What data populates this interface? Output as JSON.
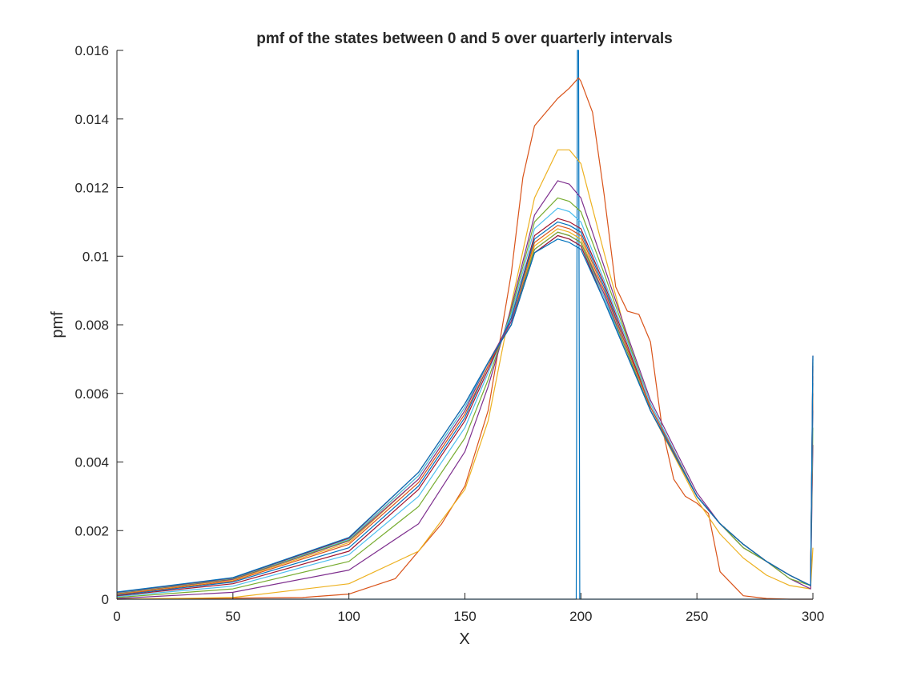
{
  "chart_data": {
    "type": "line",
    "title": "pmf of the states between 0 and 5 over quarterly intervals",
    "xlabel": "X",
    "ylabel": "pmf",
    "xlim": [
      0,
      300
    ],
    "ylim": [
      0,
      0.016
    ],
    "grid": false,
    "legend": "none",
    "x_ticks": [
      "0",
      "50",
      "100",
      "150",
      "200",
      "250",
      "300"
    ],
    "x_tick_values": [
      0,
      50,
      100,
      150,
      200,
      250,
      300
    ],
    "y_ticks": [
      "0",
      "0.002",
      "0.004",
      "0.006",
      "0.008",
      "0.01",
      "0.012",
      "0.014",
      "0.016"
    ],
    "y_tick_values": [
      0,
      0.002,
      0.004,
      0.006,
      0.008,
      0.01,
      0.012,
      0.014,
      0.016
    ],
    "series": [
      {
        "color": "#0072BD",
        "x": [
          0,
          198,
          198.5,
          199,
          199.5,
          200,
          300
        ],
        "y": [
          0,
          0,
          0.016,
          0.016,
          0,
          0,
          0
        ]
      },
      {
        "color": "#D95319",
        "x": [
          0,
          80,
          100,
          120,
          140,
          150,
          160,
          170,
          175,
          180,
          190,
          195,
          199,
          200,
          205,
          210,
          215,
          220,
          225,
          230,
          235,
          240,
          245,
          250,
          255,
          260,
          270,
          280,
          290,
          300
        ],
        "y": [
          0,
          5e-05,
          0.00015,
          0.0006,
          0.0022,
          0.0033,
          0.0055,
          0.0095,
          0.0123,
          0.0138,
          0.0146,
          0.0149,
          0.0152,
          0.0151,
          0.0142,
          0.0118,
          0.0091,
          0.0084,
          0.0083,
          0.0075,
          0.005,
          0.0035,
          0.003,
          0.0028,
          0.0025,
          0.0008,
          0.0001,
          2e-05,
          0,
          0
        ]
      },
      {
        "color": "#EDB120",
        "x": [
          0,
          50,
          100,
          130,
          150,
          160,
          170,
          180,
          190,
          195,
          200,
          210,
          220,
          230,
          250,
          260,
          270,
          280,
          290,
          299,
          300
        ],
        "y": [
          0,
          5e-05,
          0.00045,
          0.0014,
          0.0032,
          0.0052,
          0.0086,
          0.0117,
          0.0131,
          0.0131,
          0.0127,
          0.0101,
          0.0076,
          0.0055,
          0.0029,
          0.0019,
          0.0012,
          0.0007,
          0.0004,
          0.0003,
          0.0015
        ]
      },
      {
        "color": "#7E2F8E",
        "x": [
          0,
          50,
          100,
          130,
          150,
          160,
          170,
          180,
          190,
          195,
          200,
          210,
          220,
          230,
          250,
          260,
          270,
          280,
          290,
          299,
          300
        ],
        "y": [
          2e-05,
          0.0002,
          0.00085,
          0.0022,
          0.0043,
          0.0062,
          0.0085,
          0.0112,
          0.0122,
          0.0121,
          0.0117,
          0.0097,
          0.0077,
          0.0058,
          0.0031,
          0.0022,
          0.0015,
          0.0011,
          0.0006,
          0.0003,
          0.0045
        ]
      },
      {
        "color": "#77AC30",
        "x": [
          0,
          50,
          100,
          130,
          150,
          160,
          170,
          180,
          190,
          195,
          200,
          210,
          220,
          230,
          250,
          260,
          270,
          280,
          290,
          299,
          300
        ],
        "y": [
          5e-05,
          0.0003,
          0.0011,
          0.0027,
          0.0047,
          0.0064,
          0.0084,
          0.011,
          0.0117,
          0.0116,
          0.0113,
          0.0095,
          0.0076,
          0.0057,
          0.003,
          0.0022,
          0.0015,
          0.0011,
          0.0006,
          0.0004,
          0.005
        ]
      },
      {
        "color": "#4DBEEE",
        "x": [
          0,
          50,
          100,
          130,
          150,
          160,
          170,
          180,
          190,
          195,
          200,
          210,
          220,
          230,
          250,
          260,
          270,
          280,
          290,
          299,
          300
        ],
        "y": [
          8e-05,
          0.00038,
          0.0013,
          0.003,
          0.005,
          0.0066,
          0.0083,
          0.0108,
          0.0114,
          0.0113,
          0.011,
          0.0093,
          0.0075,
          0.0057,
          0.003,
          0.0022,
          0.0016,
          0.0011,
          0.0007,
          0.0004,
          0.0055
        ]
      },
      {
        "color": "#A2142F",
        "x": [
          0,
          50,
          100,
          130,
          150,
          160,
          170,
          180,
          190,
          195,
          200,
          210,
          220,
          230,
          250,
          260,
          270,
          280,
          290,
          299,
          300
        ],
        "y": [
          0.0001,
          0.00045,
          0.0014,
          0.0032,
          0.0052,
          0.0067,
          0.0082,
          0.0106,
          0.0111,
          0.011,
          0.0108,
          0.0092,
          0.0074,
          0.0056,
          0.003,
          0.0022,
          0.0016,
          0.0011,
          0.0007,
          0.0004,
          0.006
        ]
      },
      {
        "color": "#0072BD",
        "x": [
          0,
          50,
          100,
          130,
          150,
          160,
          170,
          180,
          190,
          195,
          200,
          210,
          220,
          230,
          250,
          260,
          270,
          280,
          290,
          299,
          300
        ],
        "y": [
          0.00012,
          0.0005,
          0.0015,
          0.0033,
          0.0053,
          0.0068,
          0.0082,
          0.0105,
          0.011,
          0.0109,
          0.0107,
          0.0091,
          0.0073,
          0.0056,
          0.003,
          0.0022,
          0.0016,
          0.0011,
          0.0007,
          0.0004,
          0.0063
        ]
      },
      {
        "color": "#D95319",
        "x": [
          0,
          50,
          100,
          130,
          150,
          160,
          170,
          180,
          190,
          195,
          200,
          210,
          220,
          230,
          250,
          260,
          270,
          280,
          290,
          299,
          300
        ],
        "y": [
          0.00014,
          0.00053,
          0.0016,
          0.0034,
          0.0054,
          0.0068,
          0.0081,
          0.0104,
          0.0109,
          0.0108,
          0.0106,
          0.009,
          0.0073,
          0.0056,
          0.003,
          0.0022,
          0.0016,
          0.0011,
          0.0007,
          0.0004,
          0.0065
        ]
      },
      {
        "color": "#EDB120",
        "x": [
          0,
          50,
          100,
          130,
          150,
          160,
          170,
          180,
          190,
          195,
          200,
          210,
          220,
          230,
          250,
          260,
          270,
          280,
          290,
          299,
          300
        ],
        "y": [
          0.00016,
          0.00056,
          0.00165,
          0.0035,
          0.0055,
          0.0069,
          0.0081,
          0.0103,
          0.0108,
          0.0107,
          0.0105,
          0.0089,
          0.0072,
          0.0055,
          0.003,
          0.0022,
          0.0016,
          0.0011,
          0.0007,
          0.0004,
          0.0067
        ]
      },
      {
        "color": "#7E2F8E",
        "x": [
          0,
          50,
          100,
          130,
          150,
          160,
          170,
          180,
          190,
          195,
          200,
          210,
          220,
          230,
          250,
          260,
          270,
          280,
          290,
          299,
          300
        ],
        "y": [
          0.00017,
          0.00058,
          0.0017,
          0.0035,
          0.0055,
          0.0069,
          0.0081,
          0.0102,
          0.0107,
          0.0106,
          0.0104,
          0.0089,
          0.0072,
          0.0055,
          0.003,
          0.0022,
          0.0016,
          0.0011,
          0.0007,
          0.0004,
          0.0068
        ]
      },
      {
        "color": "#77AC30",
        "x": [
          0,
          50,
          100,
          130,
          150,
          160,
          170,
          180,
          190,
          195,
          200,
          210,
          220,
          230,
          250,
          260,
          270,
          280,
          290,
          299,
          300
        ],
        "y": [
          0.00018,
          0.0006,
          0.00172,
          0.0036,
          0.0056,
          0.0069,
          0.008,
          0.0102,
          0.0107,
          0.0106,
          0.0104,
          0.0088,
          0.0072,
          0.0055,
          0.003,
          0.0022,
          0.0016,
          0.0011,
          0.0007,
          0.0004,
          0.0069
        ]
      },
      {
        "color": "#4DBEEE",
        "x": [
          0,
          50,
          100,
          130,
          150,
          160,
          170,
          180,
          190,
          195,
          200,
          210,
          220,
          230,
          250,
          260,
          270,
          280,
          290,
          299,
          300
        ],
        "y": [
          0.00019,
          0.00061,
          0.00175,
          0.0036,
          0.0056,
          0.0069,
          0.008,
          0.0101,
          0.0106,
          0.0105,
          0.0103,
          0.0088,
          0.0071,
          0.0055,
          0.003,
          0.0022,
          0.0016,
          0.0011,
          0.0007,
          0.0004,
          0.007
        ]
      },
      {
        "color": "#A2142F",
        "x": [
          0,
          50,
          100,
          130,
          150,
          160,
          170,
          180,
          190,
          195,
          200,
          210,
          220,
          230,
          250,
          260,
          270,
          280,
          290,
          299,
          300
        ],
        "y": [
          0.0002,
          0.00062,
          0.00178,
          0.0037,
          0.0057,
          0.0069,
          0.008,
          0.0101,
          0.0106,
          0.0105,
          0.0103,
          0.0087,
          0.0071,
          0.0055,
          0.003,
          0.0022,
          0.0016,
          0.0011,
          0.0007,
          0.0004,
          0.0071
        ]
      },
      {
        "color": "#0072BD",
        "x": [
          0,
          50,
          100,
          130,
          150,
          160,
          170,
          180,
          190,
          195,
          200,
          210,
          220,
          230,
          250,
          260,
          270,
          280,
          290,
          299,
          300
        ],
        "y": [
          0.00021,
          0.00063,
          0.0018,
          0.0037,
          0.0057,
          0.0069,
          0.008,
          0.0101,
          0.0105,
          0.0104,
          0.0102,
          0.0087,
          0.0071,
          0.0055,
          0.003,
          0.0022,
          0.0016,
          0.0011,
          0.0007,
          0.0004,
          0.0071
        ]
      }
    ]
  }
}
